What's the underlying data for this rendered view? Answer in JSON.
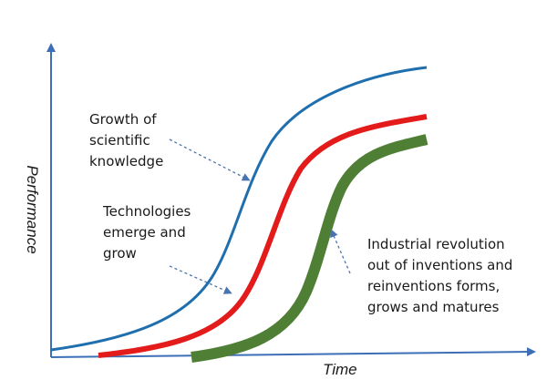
{
  "axes": {
    "y_label": "Performance",
    "x_label": "Time"
  },
  "annotations": {
    "science": "Growth of\nscientific\nknowledge",
    "technology": "Technologies\nemerge and\ngrow",
    "industry": "Industrial revolution\nout of inventions and\nreinventions forms,\ngrows and matures"
  },
  "colors": {
    "axis": "#3d6fb6",
    "science_curve": "#1f6fae",
    "technology_curve": "#e31b1b",
    "industry_curve": "#4f7f35",
    "pointer": "#4a74b0"
  },
  "curves": [
    {
      "name": "science",
      "weight": "thin"
    },
    {
      "name": "technology",
      "weight": "medium"
    },
    {
      "name": "industry",
      "weight": "thick"
    }
  ]
}
